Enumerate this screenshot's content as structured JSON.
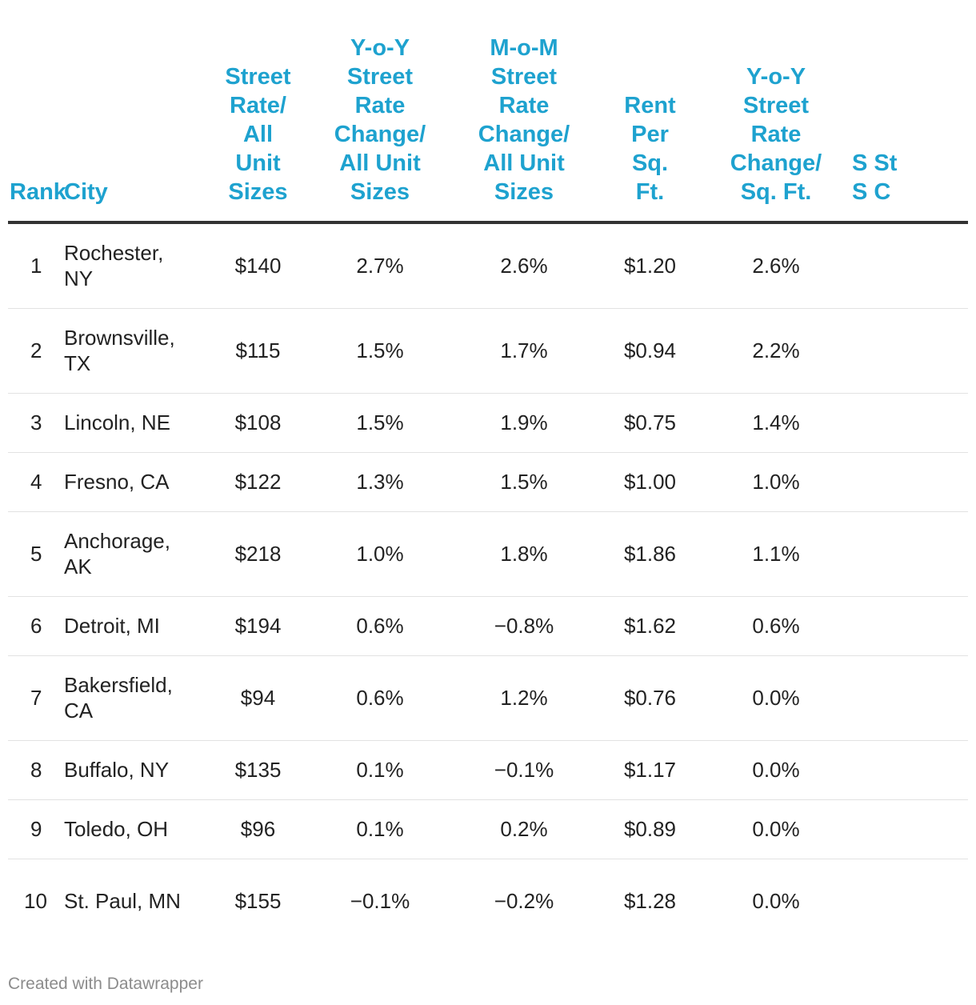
{
  "table": {
    "headers": {
      "rank": "Rank",
      "city": "City",
      "street_rate": "Street Rate/ All Unit Sizes",
      "yoy_street_rate": "Y-o-Y Street Rate Change/ All Unit Sizes",
      "mom_street_rate": "M-o-M Street Rate Change/ All Unit Sizes",
      "rent_per_sqft": "Rent Per Sq. Ft.",
      "yoy_sqft": "Y-o-Y Street Rate Change/ Sq. Ft.",
      "partial_col": "S St S C"
    },
    "rows": [
      {
        "rank": "1",
        "city": "Rochester, NY",
        "street_rate": "$140",
        "yoy": "2.7%",
        "mom": "2.6%",
        "rent": "$1.20",
        "yoy_sqft": "2.6%"
      },
      {
        "rank": "2",
        "city": "Brownsville, TX",
        "street_rate": "$115",
        "yoy": "1.5%",
        "mom": "1.7%",
        "rent": "$0.94",
        "yoy_sqft": "2.2%"
      },
      {
        "rank": "3",
        "city": "Lincoln, NE",
        "street_rate": "$108",
        "yoy": "1.5%",
        "mom": "1.9%",
        "rent": "$0.75",
        "yoy_sqft": "1.4%"
      },
      {
        "rank": "4",
        "city": "Fresno, CA",
        "street_rate": "$122",
        "yoy": "1.3%",
        "mom": "1.5%",
        "rent": "$1.00",
        "yoy_sqft": "1.0%"
      },
      {
        "rank": "5",
        "city": "Anchorage, AK",
        "street_rate": "$218",
        "yoy": "1.0%",
        "mom": "1.8%",
        "rent": "$1.86",
        "yoy_sqft": "1.1%"
      },
      {
        "rank": "6",
        "city": "Detroit, MI",
        "street_rate": "$194",
        "yoy": "0.6%",
        "mom": "−0.8%",
        "rent": "$1.62",
        "yoy_sqft": "0.6%"
      },
      {
        "rank": "7",
        "city": "Bakersfield, CA",
        "street_rate": "$94",
        "yoy": "0.6%",
        "mom": "1.2%",
        "rent": "$0.76",
        "yoy_sqft": "0.0%"
      },
      {
        "rank": "8",
        "city": "Buffalo, NY",
        "street_rate": "$135",
        "yoy": "0.1%",
        "mom": "−0.1%",
        "rent": "$1.17",
        "yoy_sqft": "0.0%"
      },
      {
        "rank": "9",
        "city": "Toledo, OH",
        "street_rate": "$96",
        "yoy": "0.1%",
        "mom": "0.2%",
        "rent": "$0.89",
        "yoy_sqft": "0.0%"
      },
      {
        "rank": "10",
        "city": "St. Paul, MN",
        "street_rate": "$155",
        "yoy": "−0.1%",
        "mom": "−0.2%",
        "rent": "$1.28",
        "yoy_sqft": "0.0%"
      }
    ]
  },
  "footer": {
    "credit": "Created with Datawrapper"
  },
  "colors": {
    "header_text": "#1ea2cf",
    "body_text": "#222222",
    "header_rule": "#333333",
    "row_rule": "#e2e2e2",
    "footer_text": "#8c8c8c"
  }
}
